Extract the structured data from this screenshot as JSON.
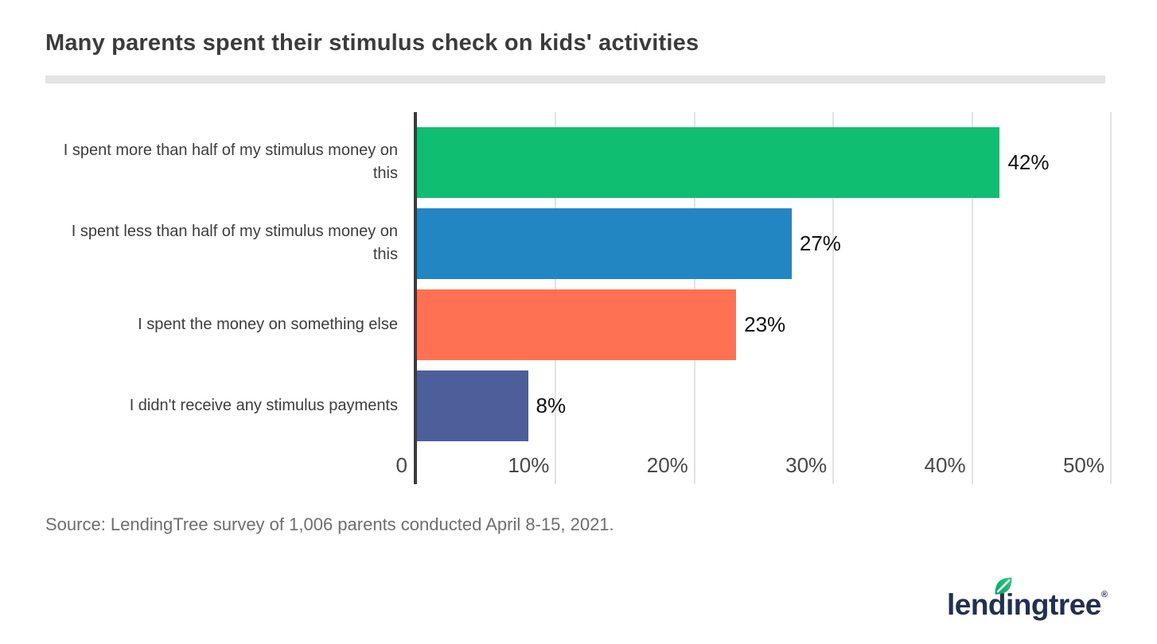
{
  "title": "Many parents spent their stimulus check on kids' activities",
  "source": "Source: LendingTree survey of 1,006 parents conducted April 8-15, 2021.",
  "logo": {
    "text": "lendingtree",
    "registered": "®"
  },
  "colors": {
    "bar_green": "#0FBE71",
    "bar_blue": "#2286C2",
    "bar_orange": "#FF7152",
    "bar_navy": "#4C5F9A",
    "axis_line": "#3B3B3B",
    "gridline": "#E2E2E2",
    "title_divider": "#E4E4E4",
    "title_text": "#3B3B3B",
    "category_text": "#3D3D3D",
    "value_text": "#101010",
    "tick_text": "#474747",
    "source_text": "#6E6E6E",
    "logo_navy": "#22304F",
    "leaf_green_light": "#2BCE85",
    "leaf_green_dark": "#0A9F60"
  },
  "chart_data": {
    "type": "bar",
    "orientation": "horizontal",
    "title": "Many parents spent their stimulus check on kids' activities",
    "categories": [
      "I spent more than half of my stimulus money on this",
      "I spent less than half of my stimulus money on this",
      "I spent the money on something else",
      "I didn't receive any stimulus payments"
    ],
    "values": [
      42,
      27,
      23,
      8
    ],
    "value_labels": [
      "42%",
      "27%",
      "23%",
      "8%"
    ],
    "bar_colors": [
      "#0FBE71",
      "#2286C2",
      "#FF7152",
      "#4C5F9A"
    ],
    "x_ticks": [
      "0",
      "10%",
      "20%",
      "30%",
      "40%",
      "50%"
    ],
    "xlim": [
      0,
      50
    ],
    "grid": true,
    "legend": "none",
    "xlabel": "",
    "ylabel": ""
  }
}
